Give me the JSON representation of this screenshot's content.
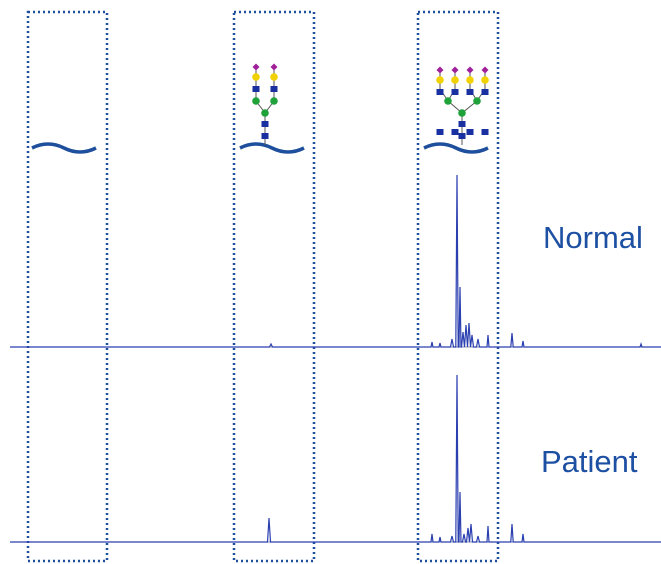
{
  "labels": {
    "normal": "Normal",
    "patient": "Patient"
  }
}
